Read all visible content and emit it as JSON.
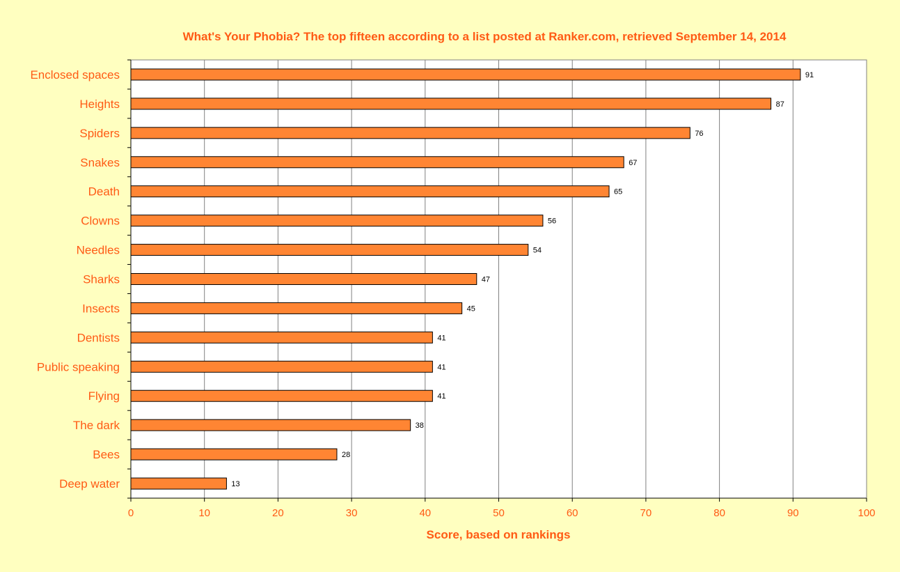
{
  "chart_data": {
    "type": "bar",
    "orientation": "horizontal",
    "title": "What's Your Phobia? The top fifteen according to a list posted at Ranker.com, retrieved September 14, 2014",
    "xlabel": "Score, based on rankings",
    "ylabel": "",
    "categories": [
      "Enclosed spaces",
      "Heights",
      "Spiders",
      "Snakes",
      "Death",
      "Clowns",
      "Needles",
      "Sharks",
      "Insects",
      "Dentists",
      "Public speaking",
      "Flying",
      "The dark",
      "Bees",
      "Deep water"
    ],
    "values": [
      91,
      87,
      76,
      67,
      65,
      56,
      54,
      47,
      45,
      41,
      41,
      41,
      38,
      28,
      13
    ],
    "xlim": [
      0,
      100
    ],
    "xticks": [
      0,
      10,
      20,
      30,
      40,
      50,
      60,
      70,
      80,
      90,
      100
    ],
    "grid": "vertical",
    "legend": "none"
  },
  "colors": {
    "background": "#ffffc0",
    "plot_area": "#ffffff",
    "bar_fill": "#ff8533",
    "bar_stroke": "#000000",
    "text_accent": "#ff5a14",
    "gridline": "#808080",
    "value_label": "#000000"
  }
}
